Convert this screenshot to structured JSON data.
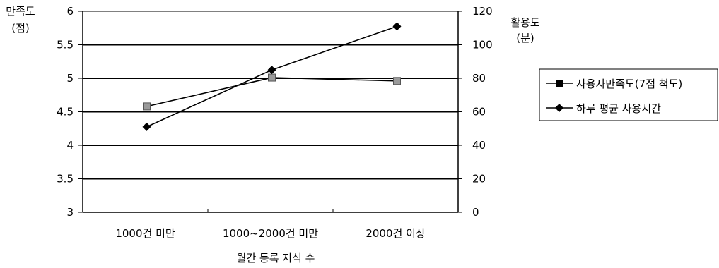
{
  "chart_data": {
    "type": "line",
    "title": "",
    "xlabel": "월간 등록 지식 수",
    "categories": [
      "1000건 미만",
      "1000~2000건 미만",
      "2000건 이상"
    ],
    "left_axis": {
      "title_line1": "만족도",
      "title_line2": "(점)",
      "ylim": [
        3,
        6
      ],
      "ticks": [
        "3",
        "3.5",
        "4",
        "4.5",
        "5",
        "5.5",
        "6"
      ]
    },
    "right_axis": {
      "title_line1": "활용도",
      "title_line2": "(분)",
      "ylim": [
        0,
        120
      ],
      "ticks": [
        "0",
        "20",
        "40",
        "60",
        "80",
        "100",
        "120"
      ]
    },
    "grid": true,
    "legend_position": "right",
    "series": [
      {
        "name": "사용자만족도(7점 척도)",
        "axis": "left",
        "marker": "square",
        "values": [
          4.58,
          5.01,
          4.96
        ]
      },
      {
        "name": "하루 평균 사용시간",
        "axis": "right",
        "marker": "diamond",
        "values": [
          51,
          85,
          111
        ]
      }
    ]
  }
}
